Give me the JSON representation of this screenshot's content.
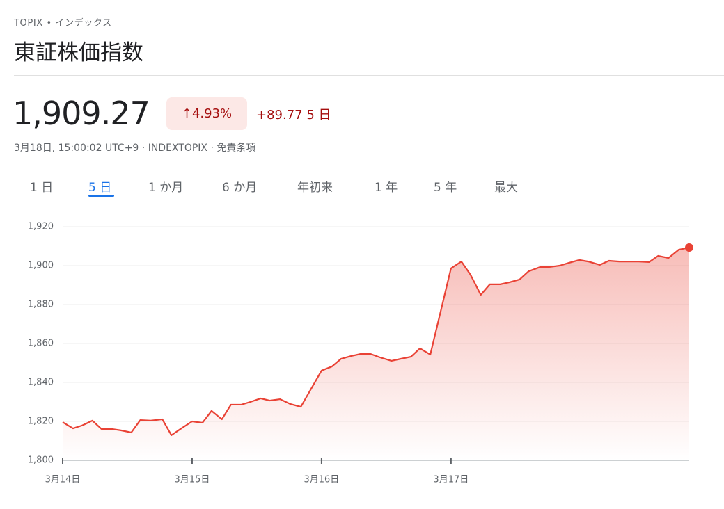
{
  "header": {
    "symbol": "TOPIX",
    "kind": "インデックス",
    "title": "東証株価指数"
  },
  "quote": {
    "price": "1,909.27",
    "change_percent": "4.93%",
    "change": "+89.77",
    "period": "5 日",
    "meta": "3月18日, 15:00:02 UTC+9 · INDEXTOPIX · 免責条項"
  },
  "tabs": [
    "1 日",
    "5 日",
    "1 か月",
    "6 か月",
    "年初来",
    "1 年",
    "5 年",
    "最大"
  ],
  "chart_data": {
    "type": "line",
    "x": [
      0,
      0.08,
      0.15,
      0.23,
      0.3,
      0.38,
      0.45,
      0.53,
      0.6,
      0.68,
      0.77,
      0.84,
      0.91,
      1,
      1.08,
      1.15,
      1.23,
      1.3,
      1.38,
      1.45,
      1.53,
      1.6,
      1.68,
      1.76,
      1.84,
      2,
      2.08,
      2.15,
      2.23,
      2.3,
      2.38,
      2.45,
      2.54,
      2.61,
      2.69,
      2.76,
      2.84,
      3,
      3.08,
      3.15,
      3.23,
      3.3,
      3.38,
      3.45,
      3.53,
      3.6,
      3.69,
      3.76,
      3.84,
      3.91,
      3.99,
      4.06,
      4.15,
      4.22,
      4.3,
      4.38,
      4.45,
      4.53,
      4.6,
      4.68,
      4.76,
      4.84
    ],
    "series": [
      {
        "name": "TOPIX",
        "color": "#e94235",
        "values": [
          1819.6,
          1816.4,
          1817.9,
          1820.4,
          1816.1,
          1816.1,
          1815.4,
          1814.3,
          1820.7,
          1820.4,
          1821.1,
          1812.9,
          1816.1,
          1820,
          1819.3,
          1825.4,
          1821.1,
          1828.6,
          1828.6,
          1830,
          1831.8,
          1830.7,
          1831.4,
          1828.9,
          1827.5,
          1846.1,
          1848.2,
          1852.1,
          1853.6,
          1854.6,
          1854.6,
          1852.9,
          1851.1,
          1852.1,
          1853.2,
          1857.5,
          1854.3,
          1898.6,
          1902.1,
          1895.4,
          1885,
          1890.4,
          1890.4,
          1891.4,
          1892.9,
          1897.1,
          1899.3,
          1899.3,
          1900,
          1901.4,
          1902.9,
          1902.1,
          1900.4,
          1902.5,
          1902.1,
          1902.1,
          1902.1,
          1901.8,
          1905,
          1903.9,
          1908.2,
          1909.27
        ]
      }
    ],
    "xlim": [
      0,
      4.84
    ],
    "xticks": [
      {
        "value": 0,
        "label": "3月14日"
      },
      {
        "value": 1,
        "label": "3月15日"
      },
      {
        "value": 2,
        "label": "3月16日"
      },
      {
        "value": 3,
        "label": "3月17日"
      }
    ],
    "ylim": [
      1800,
      1920
    ],
    "yticks": [
      {
        "value": 1800,
        "label": "1,800"
      },
      {
        "value": 1820,
        "label": "1,820"
      },
      {
        "value": 1840,
        "label": "1,840"
      },
      {
        "value": 1860,
        "label": "1,860"
      },
      {
        "value": 1880,
        "label": "1,880"
      },
      {
        "value": 1900,
        "label": "1,900"
      },
      {
        "value": 1920,
        "label": "1,920"
      }
    ],
    "grid": true
  }
}
